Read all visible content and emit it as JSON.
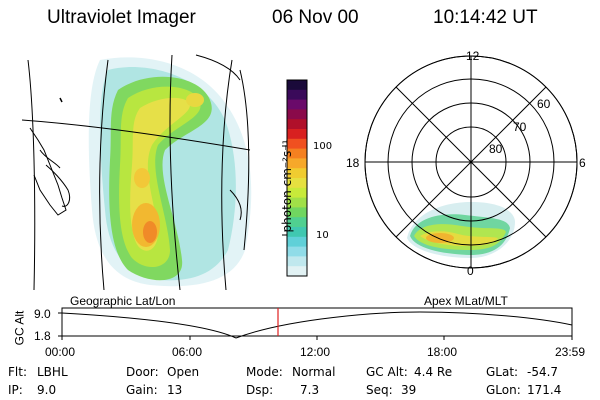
{
  "header": {
    "instrument": "Ultraviolet Imager",
    "date": "06 Nov 00",
    "time": "10:14:42 UT"
  },
  "geo_panel": {
    "label": "Geographic Lat/Lon"
  },
  "polar_panel": {
    "label": "Apex MLat/MLT",
    "mlt_labels": [
      "12",
      "18",
      "6",
      "0"
    ],
    "lat_labels": [
      "60",
      "70",
      "80"
    ]
  },
  "colorbar": {
    "unit_label": "photon cm⁻²s⁻¹",
    "tick_labels": [
      "100",
      "10"
    ],
    "colors": [
      "#1a0a3a",
      "#3a0a5a",
      "#6a0a6a",
      "#8a0a4a",
      "#b0102a",
      "#d82020",
      "#f05020",
      "#f48020",
      "#f6a82a",
      "#f0cc30",
      "#e6e040",
      "#c8ea3a",
      "#a0e048",
      "#70d660",
      "#50d090",
      "#40c8b0",
      "#60d0d8",
      "#90dce8",
      "#c0e8ee",
      "#e2f2f4"
    ]
  },
  "altitude_plot": {
    "ylabel": "GC Alt",
    "ytick_labels": [
      "9.0",
      "1.8"
    ],
    "xtick_labels": [
      "00:00",
      "06:00",
      "12:00",
      "18:00",
      "23:59"
    ],
    "current_time_marker_color": "#e02020"
  },
  "info": {
    "row1": [
      {
        "label": "Flt:",
        "value": "LBHL"
      },
      {
        "label": "Door:",
        "value": "Open"
      },
      {
        "label": "Mode:",
        "value": "Normal"
      },
      {
        "label": "GC Alt:",
        "value": "4.4 Re"
      },
      {
        "label": "GLat:",
        "value": "-54.7"
      }
    ],
    "row2": [
      {
        "label": "IP:",
        "value": "9.0"
      },
      {
        "label": "Gain:",
        "value": "13"
      },
      {
        "label": "Dsp:",
        "value": "7.3"
      },
      {
        "label": "Seq:",
        "value": "39"
      },
      {
        "label": "GLon:",
        "value": "171.4"
      }
    ]
  }
}
